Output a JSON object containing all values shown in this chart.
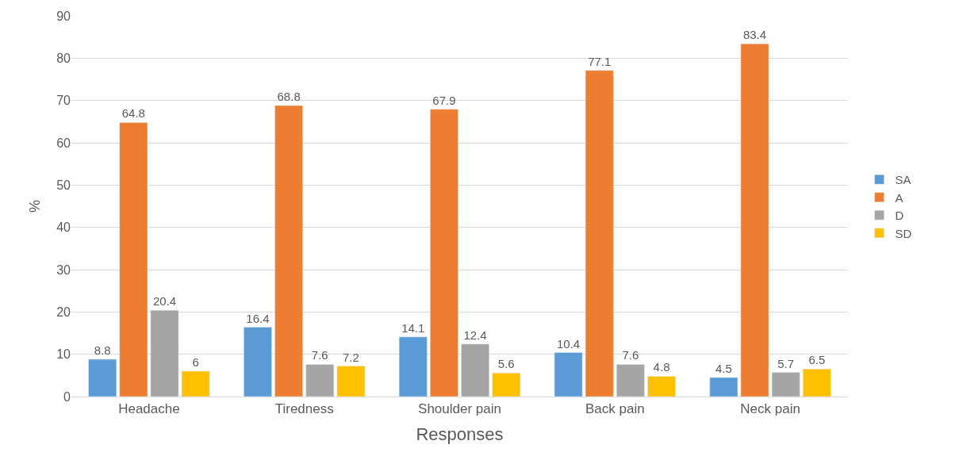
{
  "chart_data": {
    "type": "bar",
    "xlabel": "Responses",
    "ylabel": "%",
    "categories": [
      "Headache",
      "Tiredness",
      "Shoulder pain",
      "Back pain",
      "Neck pain"
    ],
    "series": [
      {
        "name": "SA",
        "color": "#5b9bd5",
        "values": [
          8.8,
          16.4,
          14.1,
          10.4,
          4.5
        ]
      },
      {
        "name": "A",
        "color": "#ed7d31",
        "values": [
          64.8,
          68.8,
          67.9,
          77.1,
          83.4
        ]
      },
      {
        "name": "D",
        "color": "#a5a5a5",
        "values": [
          20.4,
          7.6,
          12.4,
          7.6,
          5.7
        ]
      },
      {
        "name": "SD",
        "color": "#ffc000",
        "values": [
          6,
          7.2,
          5.6,
          4.8,
          6.5
        ]
      }
    ],
    "ylim": [
      0,
      90
    ],
    "yticks": [
      0,
      10,
      20,
      30,
      40,
      50,
      60,
      70,
      80,
      90
    ],
    "grid": "y",
    "legend": "right",
    "data_labels": true
  }
}
